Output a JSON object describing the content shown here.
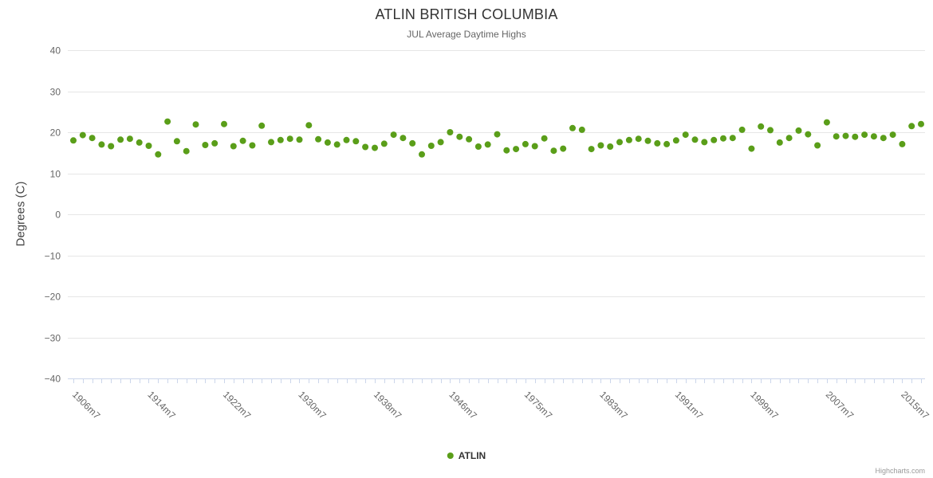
{
  "credit": "Highcharts.com",
  "chart_data": {
    "type": "scatter",
    "title": "ATLIN BRITISH COLUMBIA",
    "subtitle": "JUL Average Daytime Highs",
    "xlabel": "",
    "ylabel": "Degrees (C)",
    "ylim": [
      -40,
      40
    ],
    "ytick_interval": 10,
    "ytick_labels": [
      "40",
      "30",
      "20",
      "10",
      "0",
      "−10",
      "−20",
      "−30",
      "−40"
    ],
    "grid": true,
    "legend_position": "bottom-center",
    "colors": {
      "point": "#5a9e19",
      "grid": "#e6e6e6",
      "axis_line": "#ccd6eb",
      "tick": "#ccd6eb",
      "axis_label": "#666666"
    },
    "xticks": [
      {
        "index": 0,
        "label": "1906m7"
      },
      {
        "index": 8,
        "label": "1914m7"
      },
      {
        "index": 16,
        "label": "1922m7"
      },
      {
        "index": 24,
        "label": "1930m7"
      },
      {
        "index": 32,
        "label": "1938m7"
      },
      {
        "index": 40,
        "label": "1946m7"
      },
      {
        "index": 48,
        "label": "1975m7"
      },
      {
        "index": 56,
        "label": "1983m7"
      },
      {
        "index": 64,
        "label": "1991m7"
      },
      {
        "index": 72,
        "label": "1999m7"
      },
      {
        "index": 80,
        "label": "2007m7"
      },
      {
        "index": 88,
        "label": "2015m7"
      }
    ],
    "series": [
      {
        "name": "ATLIN",
        "color": "#5a9e19",
        "values": [
          18,
          19.3,
          18.6,
          17,
          16.6,
          18.2,
          18.4,
          17.5,
          16.7,
          14.6,
          22.6,
          17.8,
          15.4,
          21.9,
          16.9,
          17.3,
          22,
          16.6,
          17.9,
          16.8,
          21.6,
          17.6,
          18.1,
          18.4,
          18.2,
          21.7,
          18.3,
          17.5,
          17,
          18.1,
          17.8,
          16.4,
          16.2,
          17.2,
          19.4,
          18.6,
          17.3,
          14.6,
          16.7,
          17.6,
          20,
          18.9,
          18.3,
          16.5,
          17,
          19.5,
          15.6,
          15.9,
          17.1,
          16.6,
          18.5,
          15.5,
          16,
          21,
          20.6,
          15.9,
          16.8,
          16.5,
          17.6,
          18.1,
          18.4,
          17.9,
          17.3,
          17.1,
          18,
          19.4,
          18.2,
          17.6,
          18.1,
          18.5,
          18.6,
          20.6,
          16,
          21.4,
          20.5,
          17.5,
          18.6,
          20.4,
          19.5,
          16.8,
          22.4,
          19,
          19.1,
          18.9,
          19.4,
          19,
          18.6,
          19.4,
          17.1,
          21.5,
          22
        ]
      }
    ]
  }
}
